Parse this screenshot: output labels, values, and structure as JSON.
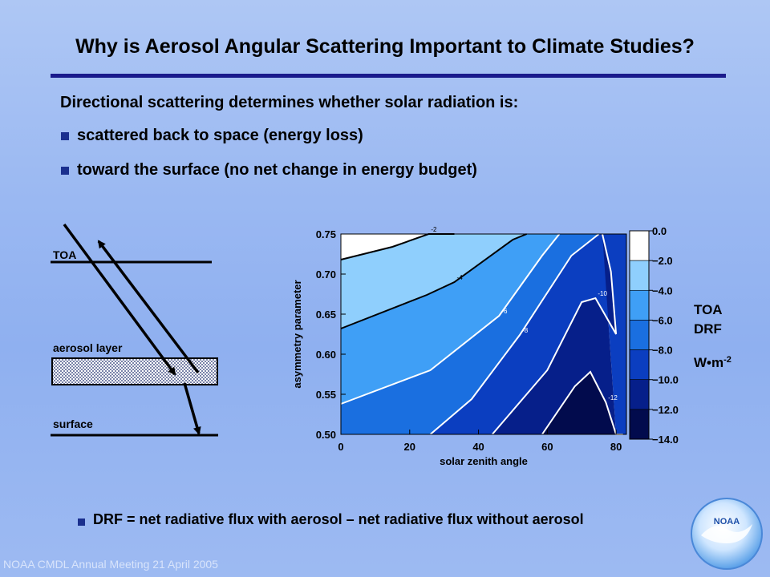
{
  "slide": {
    "title": "Why is Aerosol Angular Scattering Important to Climate Studies?",
    "intro": "Directional scattering determines whether solar radiation is:",
    "bullets": [
      "scattered back to space (energy loss)",
      "toward the surface (no net change in energy budget)"
    ],
    "definition": "DRF = net radiative flux with aerosol – net radiative flux without aerosol",
    "footer": "NOAA CMDL Annual Meeting 21 April 2005",
    "logo_text": "NOAA"
  },
  "diagram": {
    "labels": {
      "toa": "TOA",
      "aerosol_layer": "aerosol layer",
      "surface": "surface"
    }
  },
  "chart_data": {
    "type": "heatmap",
    "subtype": "filled contour",
    "xlabel": "solar zenith angle",
    "ylabel": "asymmetry parameter",
    "x_ticks": [
      "0",
      "20",
      "40",
      "60",
      "80"
    ],
    "y_ticks": [
      "0.50",
      "0.55",
      "0.60",
      "0.65",
      "0.70",
      "0.75"
    ],
    "xlim": [
      0,
      83
    ],
    "ylim": [
      0.5,
      0.75
    ],
    "colorbar": {
      "title": [
        "TOA",
        "DRF"
      ],
      "unit": "W•m",
      "unit_exp": "-2",
      "levels": [
        "0.0",
        "−2.0",
        "−4.0",
        "−6.0",
        "−8.0",
        "−10.0",
        "−12.0",
        "−14.0"
      ],
      "colors": [
        "#ffffff",
        "#8fcffd",
        "#3f9ff6",
        "#1a6fe0",
        "#0b3ec0",
        "#061f8a",
        "#020b4d"
      ]
    },
    "contours": [
      {
        "level": -2,
        "label": "-2",
        "x": [
          0,
          15,
          25.5,
          33
        ],
        "y": [
          0.718,
          0.734,
          0.75,
          0.75
        ]
      },
      {
        "level": -4,
        "label": "-4",
        "x": [
          0,
          25,
          33,
          50,
          54
        ],
        "y": [
          0.632,
          0.674,
          0.69,
          0.743,
          0.75
        ]
      },
      {
        "level": -6,
        "label": "-6",
        "x": [
          0,
          26,
          46,
          58.5,
          63.5
        ],
        "y": [
          0.538,
          0.58,
          0.648,
          0.723,
          0.75
        ]
      },
      {
        "level": -8,
        "label": "-8",
        "x": [
          26,
          38,
          52,
          67,
          75
        ],
        "y": [
          0.5,
          0.544,
          0.624,
          0.723,
          0.75
        ]
      },
      {
        "level": -10,
        "label": "-10",
        "x": [
          44,
          60,
          70,
          74,
          80,
          78.5,
          76
        ],
        "y": [
          0.5,
          0.58,
          0.665,
          0.67,
          0.625,
          0.703,
          0.75
        ]
      },
      {
        "level": -12,
        "label": "-12",
        "x": [
          58.5,
          68,
          72.5,
          77,
          80,
          82
        ],
        "y": [
          0.5,
          0.56,
          0.578,
          0.54,
          0.5,
          0.5
        ]
      }
    ],
    "fills": [
      {
        "level_index": 1,
        "x": [
          0,
          15,
          25.5,
          33,
          54,
          50,
          33,
          25,
          0
        ],
        "y": [
          0.718,
          0.734,
          0.75,
          0.75,
          0.75,
          0.743,
          0.69,
          0.674,
          0.632
        ]
      },
      {
        "level_index": 2,
        "x": [
          0,
          25,
          33,
          50,
          54,
          63.5,
          58.5,
          46,
          26,
          0
        ],
        "y": [
          0.632,
          0.674,
          0.69,
          0.743,
          0.75,
          0.75,
          0.723,
          0.648,
          0.58,
          0.538
        ]
      },
      {
        "level_index": 3,
        "x": [
          0,
          26,
          46,
          58.5,
          63.5,
          75,
          67,
          52,
          38,
          26,
          0
        ],
        "y": [
          0.538,
          0.58,
          0.648,
          0.723,
          0.75,
          0.75,
          0.723,
          0.624,
          0.544,
          0.5,
          0.5
        ]
      },
      {
        "level_index": 4,
        "x": [
          26,
          38,
          52,
          67,
          75,
          83,
          83,
          80,
          76,
          78.5,
          80,
          74,
          70,
          60,
          44
        ],
        "y": [
          0.5,
          0.544,
          0.624,
          0.723,
          0.75,
          0.75,
          0.5,
          0.5,
          0.75,
          0.703,
          0.625,
          0.67,
          0.665,
          0.58,
          0.5
        ]
      },
      {
        "level_index": 5,
        "x": [
          44,
          60,
          70,
          74,
          80,
          78.5,
          76,
          80,
          82,
          80,
          77,
          72.5,
          68,
          58.5
        ],
        "y": [
          0.5,
          0.58,
          0.665,
          0.67,
          0.625,
          0.703,
          0.75,
          0.5,
          0.5,
          0.5,
          0.54,
          0.578,
          0.56,
          0.5
        ]
      },
      {
        "level_index": 6,
        "x": [
          58.5,
          68,
          72.5,
          77,
          80
        ],
        "y": [
          0.5,
          0.56,
          0.578,
          0.54,
          0.5
        ]
      }
    ]
  }
}
